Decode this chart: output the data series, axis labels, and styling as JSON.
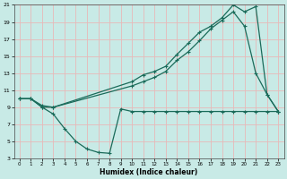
{
  "xlabel": "Humidex (Indice chaleur)",
  "background_color": "#c8eae6",
  "grid_color": "#e8b8b8",
  "line_color": "#1a6b5a",
  "xlim": [
    -0.5,
    23.5
  ],
  "ylim": [
    3,
    21
  ],
  "yticks": [
    3,
    5,
    7,
    9,
    11,
    13,
    15,
    17,
    19,
    21
  ],
  "xticks": [
    0,
    1,
    2,
    3,
    4,
    5,
    6,
    7,
    8,
    9,
    10,
    11,
    12,
    13,
    14,
    15,
    16,
    17,
    18,
    19,
    20,
    21,
    22,
    23
  ],
  "line1_x": [
    0,
    1,
    2,
    3,
    4,
    5,
    6,
    7,
    8,
    9,
    10,
    11,
    12,
    13,
    14,
    15,
    16,
    17,
    18,
    19,
    20,
    21,
    22,
    23
  ],
  "line1_y": [
    10,
    10,
    9,
    8.2,
    6.5,
    5,
    4.1,
    3.7,
    3.6,
    8.8,
    8.5,
    8.5,
    8.5,
    8.5,
    8.5,
    8.5,
    8.5,
    8.5,
    8.5,
    8.5,
    8.5,
    8.5,
    8.5,
    8.5
  ],
  "line2_x": [
    0,
    1,
    2,
    3,
    10,
    11,
    12,
    13,
    14,
    15,
    16,
    17,
    18,
    19,
    20,
    21,
    22,
    23
  ],
  "line2_y": [
    10,
    10,
    9.2,
    9.0,
    11.5,
    12.0,
    12.5,
    13.2,
    14.5,
    15.5,
    16.8,
    18.2,
    19.2,
    20.2,
    18.5,
    13.0,
    10.5,
    8.5
  ],
  "line3_x": [
    0,
    1,
    2,
    3,
    10,
    11,
    12,
    13,
    14,
    15,
    16,
    17,
    18,
    19,
    20,
    21,
    22,
    23
  ],
  "line3_y": [
    10,
    10,
    9.0,
    9.0,
    12.0,
    12.8,
    13.2,
    13.8,
    15.2,
    16.5,
    17.8,
    18.5,
    19.5,
    21.0,
    20.2,
    20.8,
    10.5,
    8.5
  ]
}
